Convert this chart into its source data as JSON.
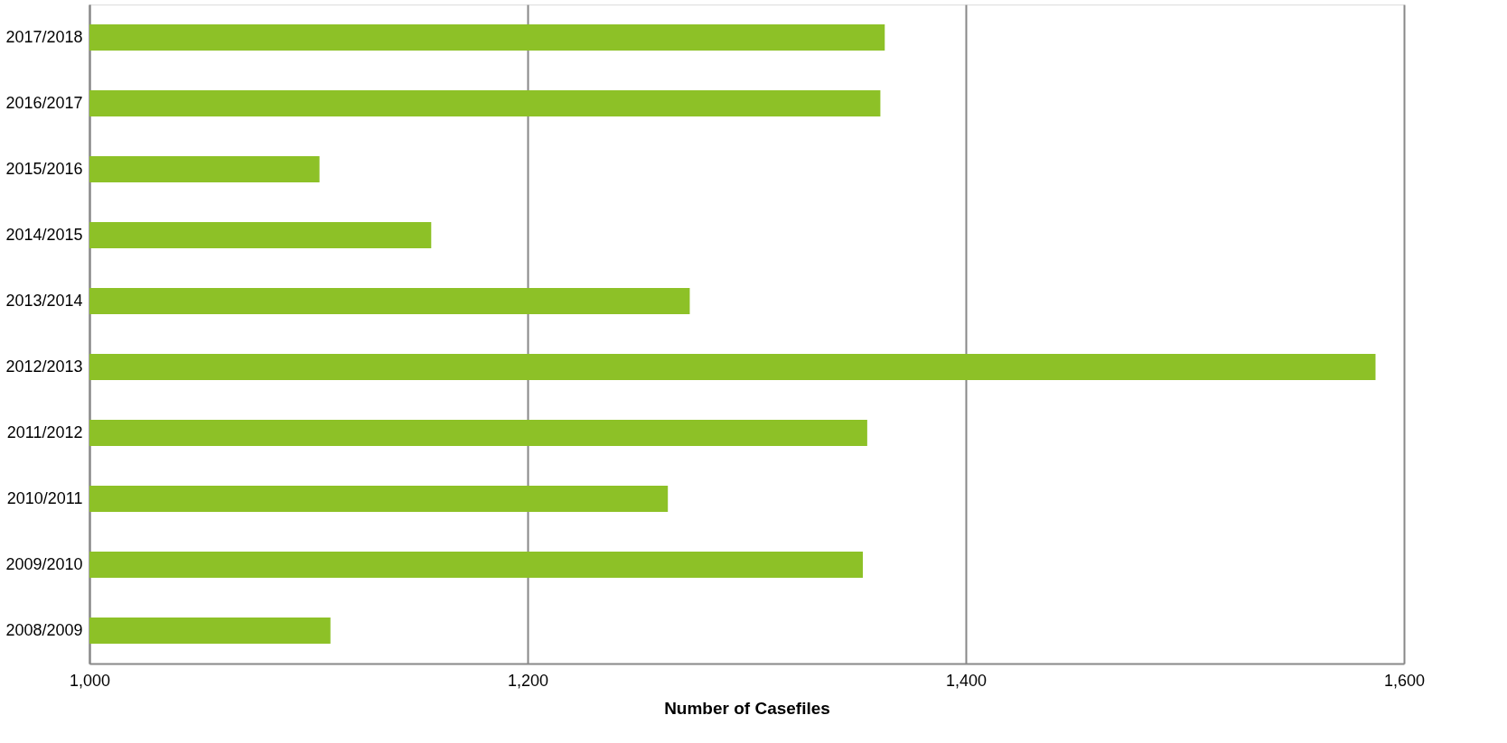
{
  "chart_data": {
    "type": "bar",
    "orientation": "horizontal",
    "xlabel": "Number of Casefiles",
    "categories": [
      "2017/2018",
      "2016/2017",
      "2015/2016",
      "2014/2015",
      "2013/2014",
      "2012/2013",
      "2011/2012",
      "2010/2011",
      "2009/2010",
      "2008/2009"
    ],
    "values": [
      1363,
      1361,
      1105,
      1156,
      1274,
      1587,
      1355,
      1264,
      1353,
      1110
    ],
    "color": "#8dc127",
    "xlim": [
      1000,
      1600
    ],
    "xticks": [
      {
        "value": 1000,
        "label": "1,000"
      },
      {
        "value": 1200,
        "label": "1,200"
      },
      {
        "value": 1400,
        "label": "1,400"
      },
      {
        "value": 1600,
        "label": "1,600"
      }
    ],
    "grid": "x"
  }
}
